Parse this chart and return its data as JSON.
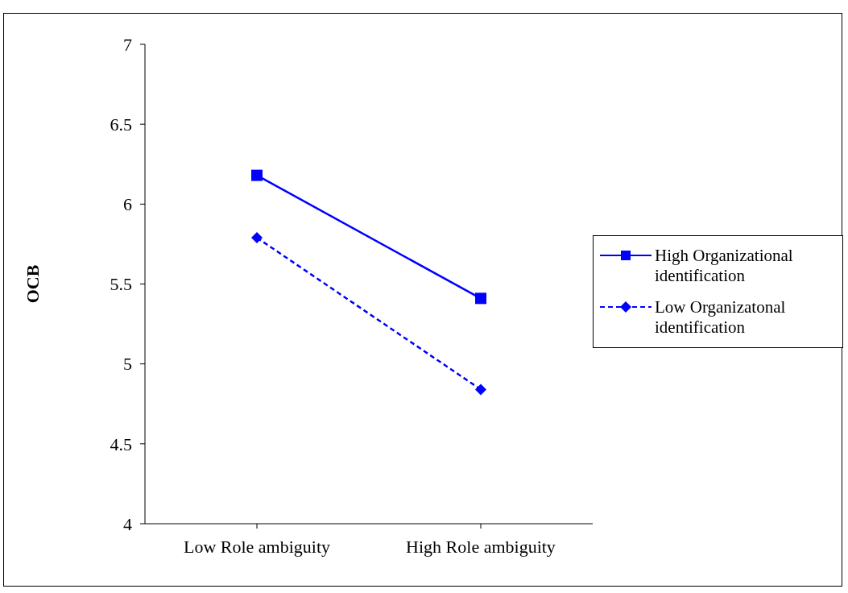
{
  "chart_data": {
    "type": "line",
    "ylabel": "OCB",
    "categories": [
      "Low Role ambiguity",
      "High Role ambiguity"
    ],
    "series": [
      {
        "name": "High Organizational identification",
        "color": "#0000ff",
        "values": [
          6.18,
          5.41
        ],
        "marker": "square",
        "line_style": "solid"
      },
      {
        "name": "Low Organizatonal identification",
        "color": "#0000ff",
        "values": [
          5.79,
          4.84
        ],
        "marker": "diamond",
        "line_style": "dashed"
      }
    ],
    "ylim": [
      4,
      7
    ],
    "yticks": [
      4,
      4.5,
      5,
      5.5,
      6,
      6.5,
      7
    ],
    "grid": false,
    "legend": "right"
  }
}
